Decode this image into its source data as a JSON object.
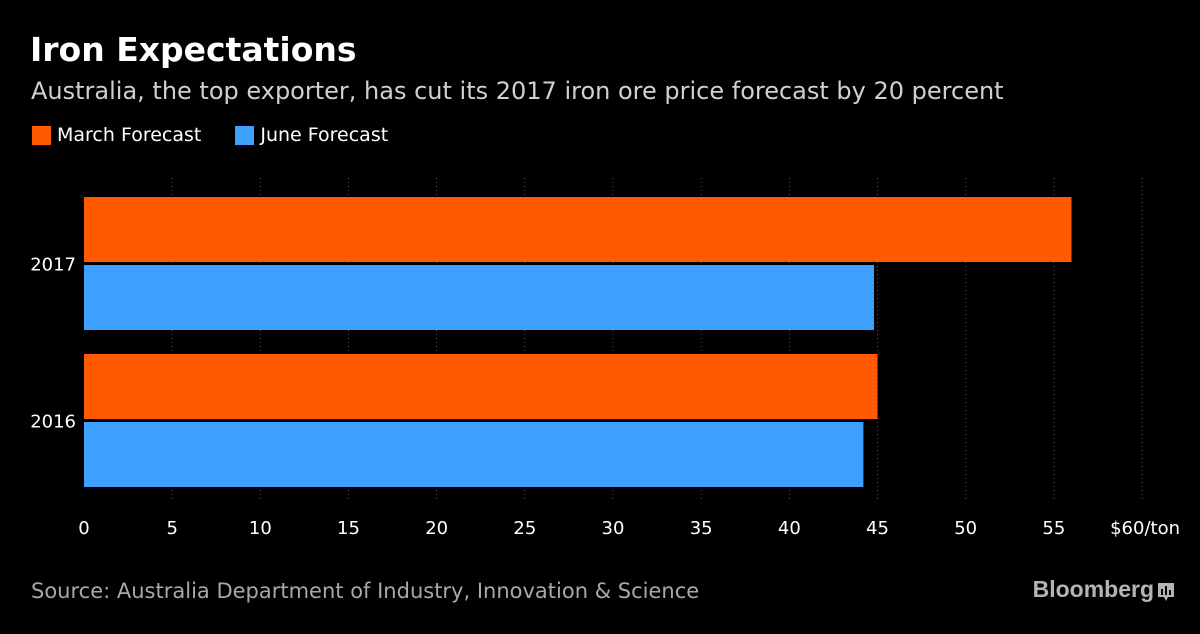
{
  "chart_data": {
    "type": "bar",
    "orientation": "horizontal",
    "title": "Iron Expectations",
    "subtitle": "Australia, the top exporter, has cut its 2017 iron ore price forecast by 20 percent",
    "categories": [
      "2017",
      "2016"
    ],
    "series": [
      {
        "name": "March Forecast",
        "color": "#ff5a00",
        "values": [
          56,
          45
        ]
      },
      {
        "name": "June Forecast",
        "color": "#3ea0ff",
        "values": [
          44.8,
          44.2
        ]
      }
    ],
    "xlim": [
      0,
      60
    ],
    "xticks": [
      0,
      5,
      10,
      15,
      20,
      25,
      30,
      35,
      40,
      45,
      50,
      55,
      60
    ],
    "xtick_labels": [
      "0",
      "5",
      "10",
      "15",
      "20",
      "25",
      "30",
      "35",
      "40",
      "45",
      "50",
      "55",
      "$60/ton"
    ],
    "grid": true,
    "legend_position": "top-left"
  },
  "footer": {
    "source": "Source: Australia Department of Industry, Innovation & Science",
    "brand": "Bloomberg"
  }
}
